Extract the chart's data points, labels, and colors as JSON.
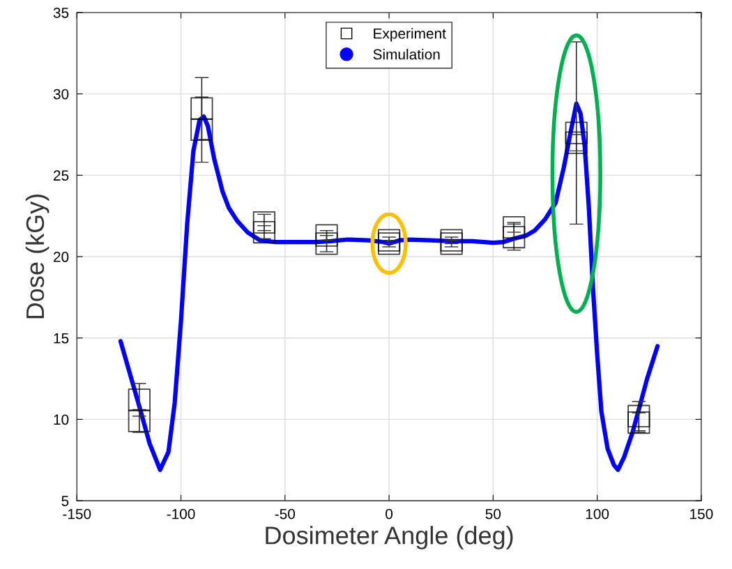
{
  "chart_data": {
    "type": "line",
    "xlabel": "Dosimeter Angle (deg)",
    "ylabel": "Dose (kGy)",
    "xlim": [
      -150,
      150
    ],
    "xticks": [
      -150,
      -100,
      -50,
      0,
      50,
      100,
      150
    ],
    "ylim": [
      5,
      35
    ],
    "yticks": [
      5,
      10,
      15,
      20,
      25,
      30,
      35
    ],
    "grid": true,
    "legend": "top",
    "series": [
      {
        "name": "Experiment",
        "type": "scatter",
        "marker": "square",
        "color": "#000000",
        "x": [
          -120,
          -120,
          -90,
          -90,
          -60,
          -60,
          -30,
          -30,
          0,
          0,
          30,
          30,
          60,
          60,
          90,
          90,
          120,
          120
        ],
        "values": [
          11.2,
          9.9,
          29.1,
          27.8,
          22.1,
          21.5,
          21.3,
          20.8,
          21.0,
          20.8,
          21.0,
          20.8,
          21.8,
          21.2,
          27.6,
          27.0,
          10.2,
          9.8
        ],
        "errors": [
          1.0,
          0.7,
          1.9,
          2.0,
          0.5,
          0.4,
          0.3,
          0.5,
          0.2,
          0.2,
          0.2,
          0.2,
          0.3,
          0.8,
          5.6,
          0.5,
          0.9,
          0.6
        ]
      },
      {
        "name": "Simulation",
        "color": "#0000ff",
        "x": [
          -129,
          -120,
          -115,
          -110,
          -106,
          -103,
          -100,
          -97,
          -94,
          -91,
          -89,
          -87,
          -84,
          -80,
          -77,
          -73,
          -68,
          -62,
          -55,
          -45,
          -35,
          -28,
          -20,
          -10,
          -3,
          0,
          5,
          10,
          20,
          30,
          40,
          50,
          55,
          60,
          66,
          70,
          75,
          80,
          84,
          87,
          90,
          92,
          94,
          96,
          98,
          100,
          102,
          105,
          108,
          110,
          113,
          117,
          120,
          124,
          129
        ],
        "values": [
          14.8,
          10.8,
          8.5,
          6.9,
          8.0,
          11,
          16,
          22,
          26.5,
          28.4,
          28.6,
          28.0,
          26.0,
          24.0,
          23.0,
          22.2,
          21.5,
          21.0,
          20.9,
          20.9,
          20.9,
          20.95,
          21.05,
          21.0,
          20.9,
          20.8,
          21.0,
          21.05,
          21.0,
          20.95,
          20.95,
          20.85,
          20.9,
          21.1,
          21.3,
          21.6,
          22.3,
          23.3,
          25.5,
          27.5,
          29.4,
          28.8,
          26.8,
          23,
          18,
          14,
          10.5,
          8.2,
          7.2,
          6.9,
          7.7,
          9.2,
          10.6,
          12.5,
          14.5
        ]
      }
    ]
  }
}
